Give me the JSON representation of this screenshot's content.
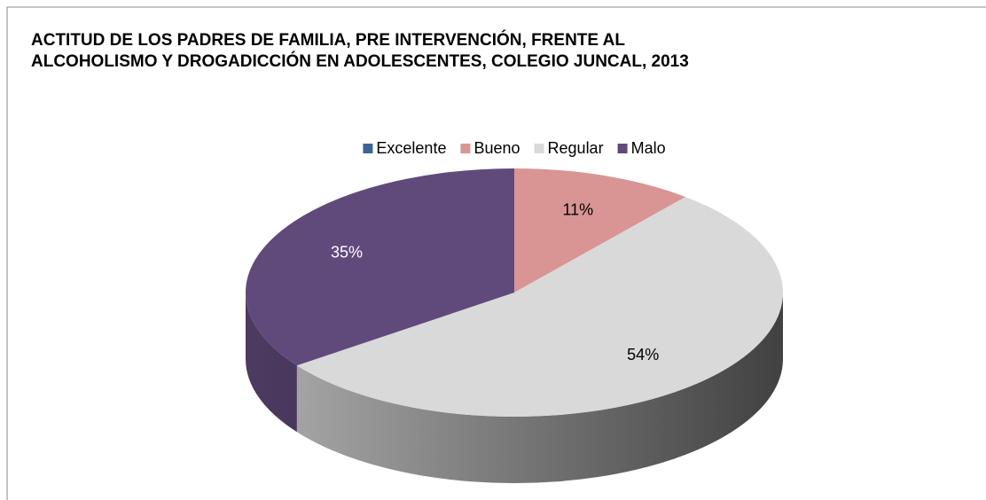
{
  "chart_data": {
    "type": "pie3d",
    "title": "ACTITUD DE LOS PADRES DE FAMILIA, PRE INTERVENCIÓN, FRENTE AL ALCOHOLISMO Y DROGADICCIÓN EN ADOLESCENTES, COLEGIO JUNCAL, 2013",
    "categories": [
      "Excelente",
      "Bueno",
      "Regular",
      "Malo"
    ],
    "values": [
      0,
      11,
      54,
      35
    ],
    "value_labels": [
      null,
      "11%",
      "54%",
      "35%"
    ],
    "colors": [
      "#3d6399",
      "#d99594",
      "#d9d9d9",
      "#604a7b"
    ],
    "value_label_colors": [
      null,
      "#000000",
      "#000000",
      "#ffffff"
    ],
    "legend": "top"
  }
}
